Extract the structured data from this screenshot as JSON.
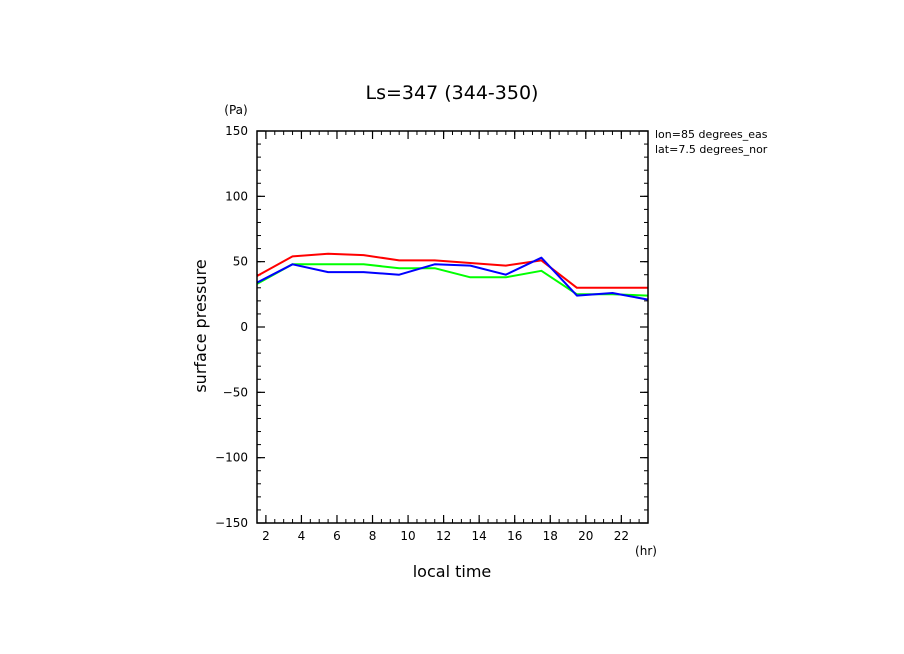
{
  "chart_data": {
    "type": "line",
    "title": "Ls=347 (344-350)",
    "xlabel": "local time",
    "ylabel": "surface pressure",
    "x_unit": "(hr)",
    "y_unit": "(Pa)",
    "xlim": [
      1.5,
      23.5
    ],
    "ylim": [
      -150,
      150
    ],
    "xticks": [
      2,
      4,
      6,
      8,
      10,
      12,
      14,
      16,
      18,
      20,
      22
    ],
    "yticks": [
      -150,
      -100,
      -50,
      0,
      50,
      100,
      150
    ],
    "x_minor_step": 0.5,
    "y_minor_step": 10,
    "grid": false,
    "annotations": [
      "lon=85 degrees_eas",
      "lat=7.5 degrees_nor"
    ],
    "x": [
      1.5,
      3.5,
      5.5,
      7.5,
      9.5,
      11.5,
      13.5,
      15.5,
      17.5,
      19.5,
      21.5,
      23.5
    ],
    "series": [
      {
        "color": "#ff0000",
        "values": [
          39,
          54,
          56,
          55,
          51,
          51,
          49,
          47,
          51,
          30,
          30,
          30
        ]
      },
      {
        "color": "#00ff00",
        "values": [
          33,
          48,
          48,
          48,
          45,
          45,
          38,
          38,
          43,
          25,
          25,
          24
        ]
      },
      {
        "color": "#0000ff",
        "values": [
          34,
          48,
          42,
          42,
          40,
          48,
          47,
          40,
          53,
          24,
          26,
          21
        ]
      }
    ]
  }
}
